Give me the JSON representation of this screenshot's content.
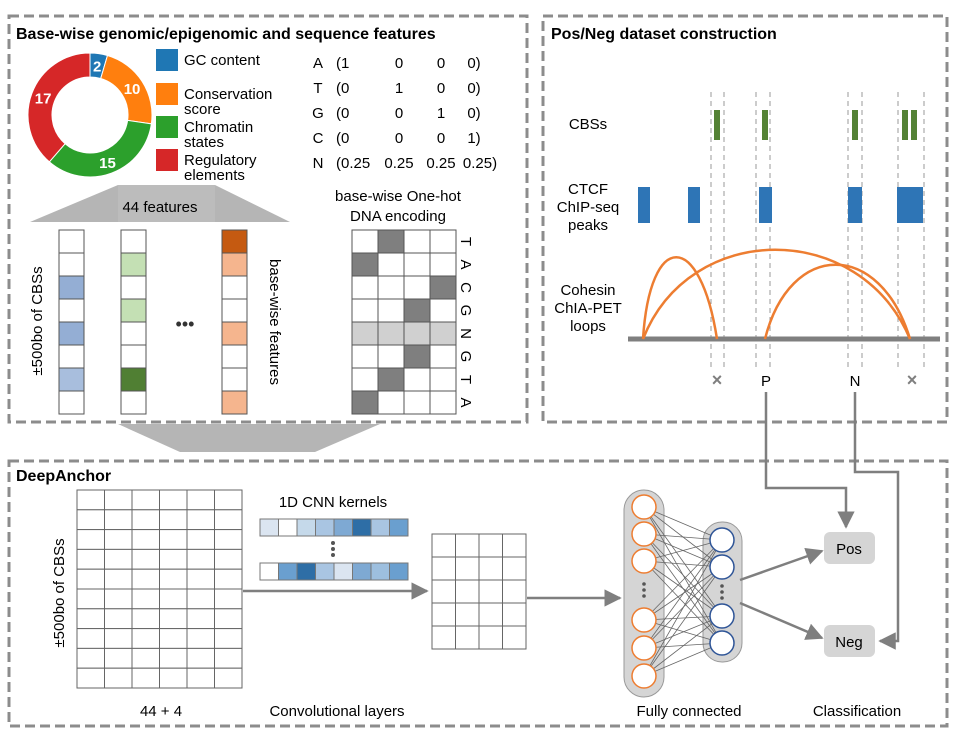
{
  "panels": {
    "features_title": "Base-wise genomic/epigenomic and sequence features",
    "posneg_title": "Pos/Neg dataset construction",
    "deepanchor_title": "DeepAnchor"
  },
  "chart_data": {
    "type": "pie",
    "variant": "donut",
    "categories": [
      "GC content",
      "Conservation score",
      "Chromatin states",
      "Regulatory elements"
    ],
    "values": [
      2,
      10,
      15,
      17
    ],
    "colors": [
      "#1f77b4",
      "#ff7f0e",
      "#2ca02c",
      "#d62728"
    ]
  },
  "legend": [
    {
      "lines": [
        "GC content"
      ],
      "color": "#1f77b4"
    },
    {
      "lines": [
        "Conservation",
        "score"
      ],
      "color": "#ff7f0e"
    },
    {
      "lines": [
        "Chromatin",
        "states"
      ],
      "color": "#2ca02c"
    },
    {
      "lines": [
        "Regulatory",
        "elements"
      ],
      "color": "#d62728"
    }
  ],
  "onehot": {
    "rows": [
      {
        "base": "A",
        "vec": "(1",
        "c2": "0",
        "c3": "0",
        "c4": "0)"
      },
      {
        "base": "T",
        "vec": "(0",
        "c2": "1",
        "c3": "0",
        "c4": "0)"
      },
      {
        "base": "G",
        "vec": "(0",
        "c2": "0",
        "c3": "1",
        "c4": "0)"
      },
      {
        "base": "C",
        "vec": "(0",
        "c2": "0",
        "c3": "0",
        "c4": "1)"
      },
      {
        "base": "N",
        "vec": "(0.25",
        "c2": "0.25",
        "c3": "0.25",
        "c4": "0.25)"
      }
    ],
    "caption_line1": "base-wise One-hot",
    "caption_line2": "DNA encoding",
    "sequence": [
      "T",
      "A",
      "C",
      "G",
      "N",
      "G",
      "T",
      "A"
    ]
  },
  "features": {
    "count_label": "44 features",
    "y_label": "±500bo of CBSs",
    "side_label": "base-wise features",
    "ellipsis": "•••"
  },
  "posneg": {
    "cbs_label": "CBSs",
    "ctcf_lines": [
      "CTCF",
      "ChIP-seq",
      "peaks"
    ],
    "cohesin_lines": [
      "Cohesin",
      "ChIA-PET",
      "loops"
    ],
    "marks": [
      "×",
      "P",
      "N",
      "×"
    ]
  },
  "deepanchor": {
    "y_label": "±500bo of CBSs",
    "x_label": "44 + 4",
    "kernels_label": "1D CNN kernels",
    "conv_label": "Convolutional layers",
    "fc_label": "Fully connected",
    "class_label": "Classification",
    "pos": "Pos",
    "neg": "Neg"
  }
}
